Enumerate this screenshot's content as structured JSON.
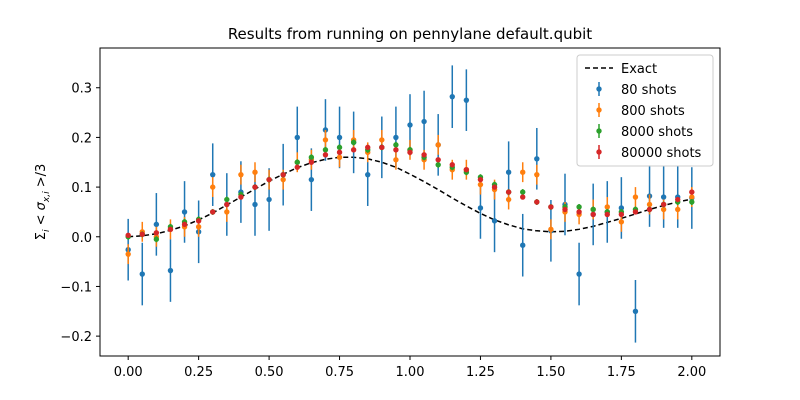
{
  "chart_data": {
    "type": "scatter",
    "title": "Results from running on pennylane default.qubit",
    "xlabel": "",
    "ylabel": "Σ_i < σ_{x,i} >/3",
    "xlim": [
      -0.1,
      2.1
    ],
    "ylim": [
      -0.24,
      0.38
    ],
    "xticks": [
      0.0,
      0.25,
      0.5,
      0.75,
      1.0,
      1.25,
      1.5,
      1.75,
      2.0
    ],
    "xtick_labels": [
      "0.00",
      "0.25",
      "0.50",
      "0.75",
      "1.00",
      "1.25",
      "1.50",
      "1.75",
      "2.00"
    ],
    "yticks": [
      -0.2,
      -0.1,
      0.0,
      0.1,
      0.2,
      0.3
    ],
    "ytick_labels": [
      "−0.2",
      "−0.1",
      "0.0",
      "0.1",
      "0.2",
      "0.3"
    ],
    "grid": false,
    "legend_position": "top-right",
    "x": [
      0.0,
      0.05,
      0.1,
      0.15,
      0.2,
      0.25,
      0.3,
      0.35,
      0.4,
      0.45,
      0.5,
      0.55,
      0.6,
      0.65,
      0.7,
      0.75,
      0.8,
      0.85,
      0.9,
      0.95,
      1.0,
      1.05,
      1.1,
      1.15,
      1.2,
      1.25,
      1.3,
      1.35,
      1.4,
      1.45,
      1.5,
      1.55,
      1.6,
      1.65,
      1.7,
      1.75,
      1.8,
      1.85,
      1.9,
      1.95,
      2.0
    ],
    "exact": {
      "name": "Exact",
      "color": "#000000",
      "style": "dashed",
      "x": [
        0.0,
        0.05,
        0.1,
        0.15,
        0.2,
        0.25,
        0.3,
        0.35,
        0.4,
        0.45,
        0.5,
        0.55,
        0.6,
        0.65,
        0.7,
        0.75,
        0.8,
        0.85,
        0.9,
        0.95,
        1.0,
        1.05,
        1.1,
        1.15,
        1.2,
        1.25,
        1.3,
        1.35,
        1.4,
        1.45,
        1.5,
        1.55,
        1.6,
        1.65,
        1.7,
        1.75,
        1.8,
        1.85,
        1.9,
        1.95,
        2.0
      ],
      "y": [
        0.0,
        0.002,
        0.006,
        0.013,
        0.022,
        0.034,
        0.048,
        0.064,
        0.08,
        0.096,
        0.112,
        0.126,
        0.139,
        0.149,
        0.156,
        0.16,
        0.16,
        0.157,
        0.15,
        0.14,
        0.126,
        0.111,
        0.095,
        0.078,
        0.062,
        0.047,
        0.034,
        0.024,
        0.016,
        0.012,
        0.01,
        0.011,
        0.015,
        0.021,
        0.029,
        0.037,
        0.046,
        0.055,
        0.063,
        0.07,
        0.076
      ]
    },
    "series": [
      {
        "name": "80 shots",
        "color": "#1f77b4",
        "y": [
          -0.026,
          -0.075,
          0.025,
          -0.068,
          0.05,
          0.01,
          0.125,
          0.065,
          0.09,
          0.065,
          0.075,
          0.125,
          0.2,
          0.115,
          0.215,
          0.2,
          0.19,
          0.125,
          0.18,
          0.2,
          0.225,
          0.232,
          0.185,
          0.282,
          0.275,
          0.058,
          0.032,
          0.13,
          -0.017,
          0.157,
          0.012,
          0.065,
          -0.075,
          0.045,
          0.05,
          0.058,
          -0.15,
          0.082,
          0.08,
          0.08,
          0.078
        ],
        "err": [
          0.062,
          0.063,
          0.063,
          0.063,
          0.062,
          0.063,
          0.063,
          0.063,
          0.062,
          0.063,
          0.063,
          0.062,
          0.062,
          0.063,
          0.062,
          0.062,
          0.062,
          0.063,
          0.062,
          0.062,
          0.062,
          0.062,
          0.062,
          0.063,
          0.062,
          0.062,
          0.063,
          0.062,
          0.063,
          0.062,
          0.062,
          0.062,
          0.063,
          0.062,
          0.062,
          0.062,
          0.063,
          0.062,
          0.062,
          0.062,
          0.062
        ]
      },
      {
        "name": "800 shots",
        "color": "#ff7f0e",
        "y": [
          -0.035,
          0.01,
          0.0,
          0.015,
          0.02,
          0.02,
          0.1,
          0.05,
          0.125,
          0.13,
          0.115,
          0.115,
          0.15,
          0.155,
          0.195,
          0.16,
          0.195,
          0.17,
          0.195,
          0.155,
          0.175,
          0.155,
          0.185,
          0.135,
          0.135,
          0.105,
          0.095,
          0.075,
          0.13,
          0.125,
          0.015,
          0.05,
          0.045,
          0.055,
          0.06,
          0.03,
          0.08,
          0.065,
          0.055,
          0.055,
          0.08
        ],
        "err": [
          0.02,
          0.02,
          0.02,
          0.02,
          0.02,
          0.02,
          0.02,
          0.02,
          0.02,
          0.02,
          0.02,
          0.02,
          0.02,
          0.02,
          0.02,
          0.02,
          0.02,
          0.02,
          0.02,
          0.02,
          0.02,
          0.02,
          0.02,
          0.02,
          0.02,
          0.02,
          0.02,
          0.02,
          0.02,
          0.02,
          0.02,
          0.02,
          0.02,
          0.02,
          0.02,
          0.02,
          0.02,
          0.02,
          0.02,
          0.02,
          0.02
        ]
      },
      {
        "name": "8000 shots",
        "color": "#2ca02c",
        "y": [
          0.0,
          0.005,
          -0.005,
          0.02,
          0.03,
          0.035,
          0.05,
          0.075,
          0.085,
          0.1,
          0.115,
          0.125,
          0.15,
          0.16,
          0.175,
          0.18,
          0.19,
          0.175,
          0.18,
          0.185,
          0.175,
          0.16,
          0.145,
          0.14,
          0.13,
          0.12,
          0.105,
          0.09,
          0.09,
          0.07,
          0.06,
          0.06,
          0.06,
          0.055,
          0.05,
          0.05,
          0.055,
          0.055,
          0.065,
          0.07,
          0.07
        ],
        "err": [
          0.006,
          0.006,
          0.006,
          0.006,
          0.006,
          0.006,
          0.006,
          0.006,
          0.006,
          0.006,
          0.006,
          0.006,
          0.006,
          0.006,
          0.006,
          0.006,
          0.006,
          0.006,
          0.006,
          0.006,
          0.006,
          0.006,
          0.006,
          0.006,
          0.006,
          0.006,
          0.006,
          0.006,
          0.006,
          0.006,
          0.006,
          0.006,
          0.006,
          0.006,
          0.006,
          0.006,
          0.006,
          0.006,
          0.006,
          0.006,
          0.006
        ]
      },
      {
        "name": "80000 shots",
        "color": "#d62728",
        "y": [
          0.003,
          0.005,
          0.008,
          0.015,
          0.025,
          0.032,
          0.05,
          0.065,
          0.08,
          0.1,
          0.115,
          0.125,
          0.14,
          0.15,
          0.165,
          0.17,
          0.175,
          0.18,
          0.18,
          0.175,
          0.17,
          0.165,
          0.155,
          0.145,
          0.135,
          0.115,
          0.1,
          0.09,
          0.08,
          0.07,
          0.06,
          0.055,
          0.05,
          0.045,
          0.045,
          0.045,
          0.05,
          0.055,
          0.065,
          0.075,
          0.09
        ],
        "err": [
          0.002,
          0.002,
          0.002,
          0.002,
          0.002,
          0.002,
          0.002,
          0.002,
          0.002,
          0.002,
          0.002,
          0.002,
          0.002,
          0.002,
          0.002,
          0.002,
          0.002,
          0.002,
          0.002,
          0.002,
          0.002,
          0.002,
          0.002,
          0.002,
          0.002,
          0.002,
          0.002,
          0.002,
          0.002,
          0.002,
          0.002,
          0.002,
          0.002,
          0.002,
          0.002,
          0.002,
          0.002,
          0.002,
          0.002,
          0.002,
          0.002
        ]
      }
    ]
  }
}
